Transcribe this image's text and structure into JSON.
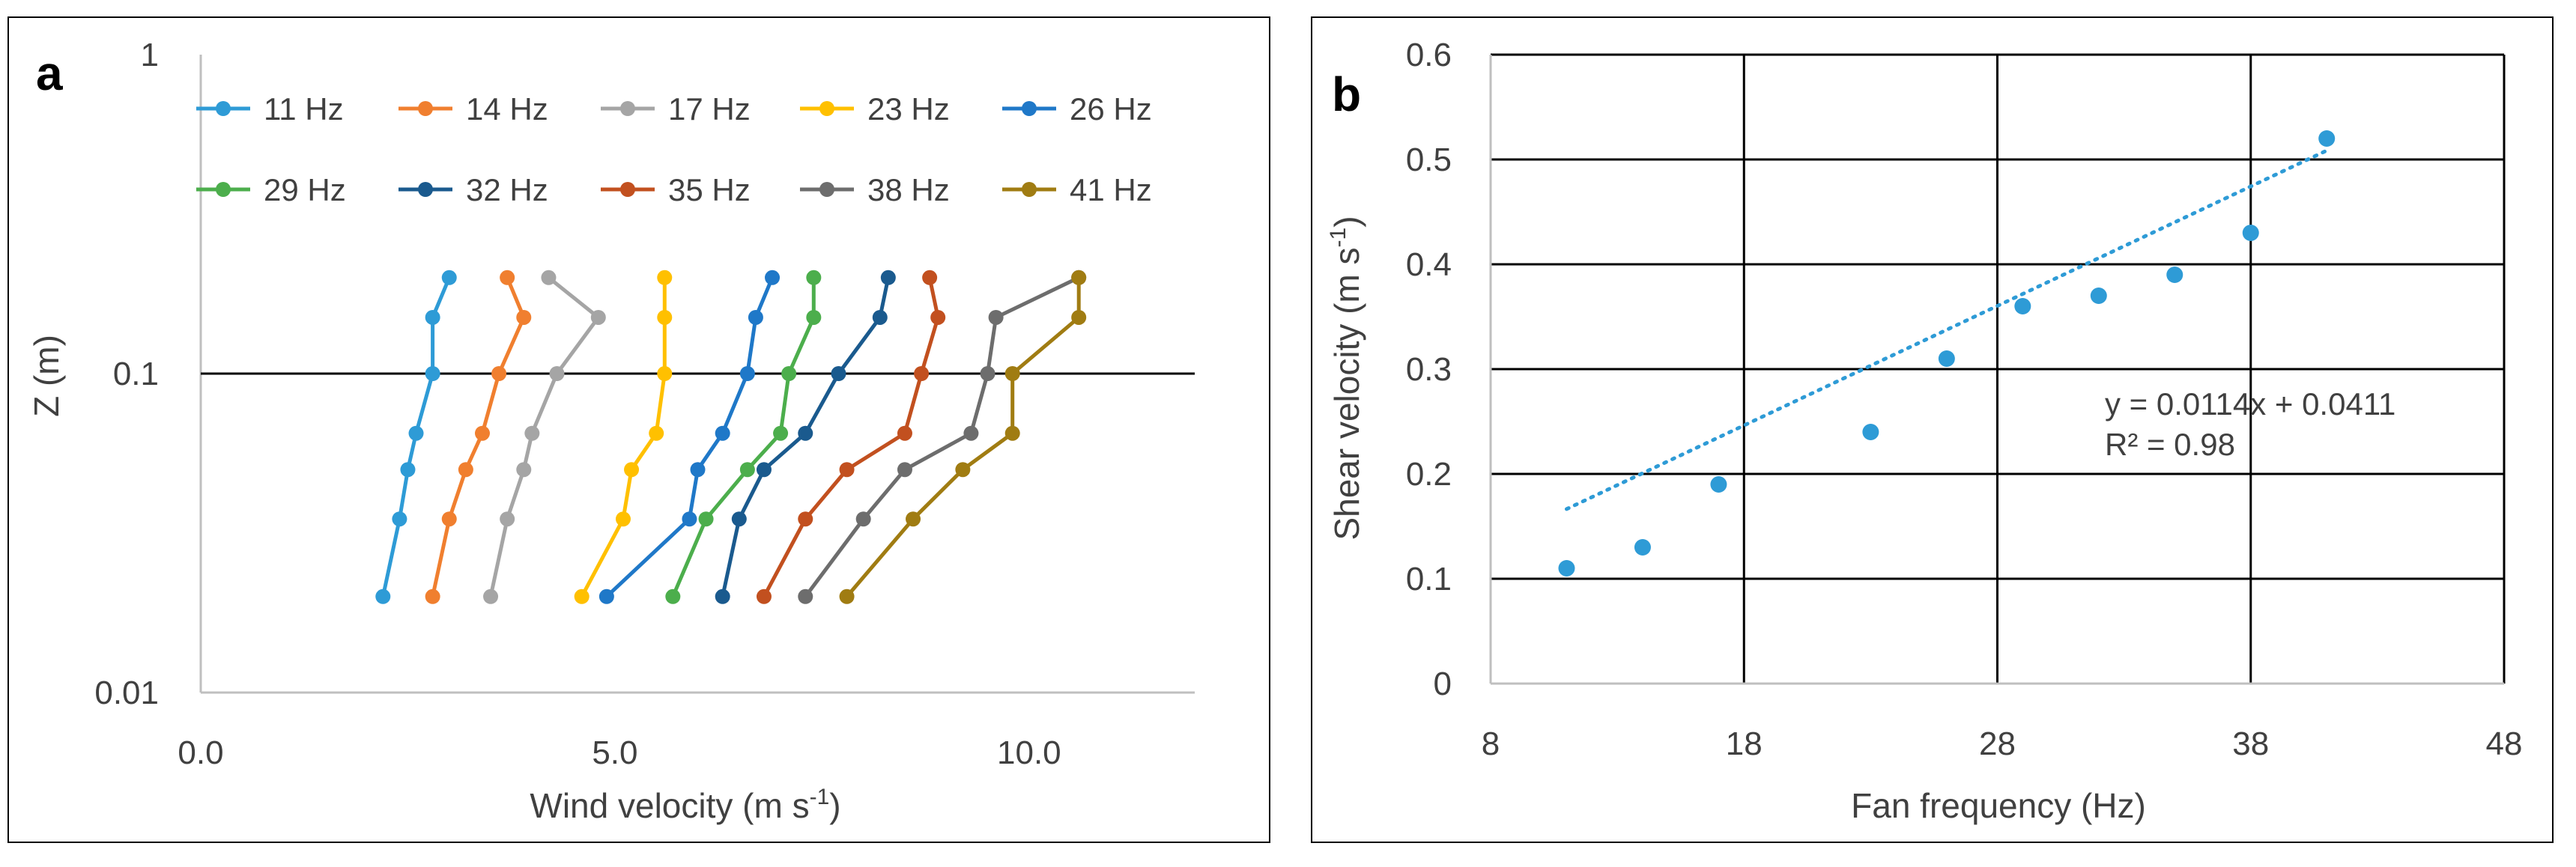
{
  "chart_data": [
    {
      "id": "a",
      "type": "line",
      "panel_label": "a",
      "xlabel": "Wind velocity (m s",
      "xlabel_sup": "-1",
      "xlabel_end": ")",
      "ylabel": "Z (m)",
      "xlim": [
        0,
        12
      ],
      "ylim": [
        0.01,
        1
      ],
      "yscale": "log",
      "xticks": [
        0,
        5,
        10
      ],
      "xtick_labels": [
        "0.0",
        "5.0",
        "10.0"
      ],
      "yticks": [
        0.01,
        0.1,
        1
      ],
      "ytick_labels": [
        "0.01",
        "0.1",
        "1"
      ],
      "gridline_y": 0.1,
      "z": [
        0.02,
        0.035,
        0.05,
        0.065,
        0.1,
        0.15,
        0.2
      ],
      "series": [
        {
          "name": "11 Hz",
          "color": "#2e9bd6",
          "x": [
            2.2,
            2.4,
            2.5,
            2.6,
            2.8,
            2.8,
            3.0
          ]
        },
        {
          "name": "14 Hz",
          "color": "#f07f2f",
          "x": [
            2.8,
            3.0,
            3.2,
            3.4,
            3.6,
            3.9,
            3.7
          ]
        },
        {
          "name": "17 Hz",
          "color": "#a5a5a5",
          "x": [
            3.5,
            3.7,
            3.9,
            4.0,
            4.3,
            4.8,
            4.2
          ]
        },
        {
          "name": "23 Hz",
          "color": "#ffc000",
          "x": [
            4.6,
            5.1,
            5.2,
            5.5,
            5.6,
            5.6,
            5.6
          ]
        },
        {
          "name": "26 Hz",
          "color": "#1f78c8",
          "x": [
            4.9,
            5.9,
            6.0,
            6.3,
            6.6,
            6.7,
            6.9
          ]
        },
        {
          "name": "29 Hz",
          "color": "#4cae4c",
          "x": [
            5.7,
            6.1,
            6.6,
            7.0,
            7.1,
            7.4,
            7.4
          ]
        },
        {
          "name": "32 Hz",
          "color": "#1a5a8e",
          "x": [
            6.3,
            6.5,
            6.8,
            7.3,
            7.7,
            8.2,
            8.3
          ]
        },
        {
          "name": "35 Hz",
          "color": "#c2501f",
          "x": [
            6.8,
            7.3,
            7.8,
            8.5,
            8.7,
            8.9,
            8.8
          ]
        },
        {
          "name": "38 Hz",
          "color": "#6d6d6d",
          "x": [
            7.3,
            8.0,
            8.5,
            9.3,
            9.5,
            9.6,
            10.6
          ]
        },
        {
          "name": "41 Hz",
          "color": "#a07c12",
          "x": [
            7.8,
            8.6,
            9.2,
            9.8,
            9.8,
            10.6,
            10.6
          ]
        }
      ]
    },
    {
      "id": "b",
      "type": "scatter",
      "panel_label": "b",
      "xlabel": "Fan frequency (Hz)",
      "ylabel": "Shear velocity (m s",
      "ylabel_sup": "-1",
      "ylabel_end": ")",
      "xlim": [
        8,
        48
      ],
      "ylim": [
        0,
        0.6
      ],
      "xticks": [
        8,
        18,
        28,
        38,
        48
      ],
      "xtick_labels": [
        "8",
        "18",
        "28",
        "38",
        "48"
      ],
      "yticks": [
        0,
        0.1,
        0.2,
        0.3,
        0.4,
        0.5,
        0.6
      ],
      "ytick_labels": [
        "0",
        "0.1",
        "0.2",
        "0.3",
        "0.4",
        "0.5",
        "0.6"
      ],
      "color": "#2e9bd6",
      "x": [
        11,
        14,
        17,
        23,
        26,
        29,
        32,
        35,
        38,
        41
      ],
      "y": [
        0.11,
        0.13,
        0.19,
        0.24,
        0.31,
        0.36,
        0.37,
        0.39,
        0.43,
        0.52
      ],
      "trendline": {
        "slope": 0.0114,
        "intercept": 0.0411,
        "x_range": [
          11,
          41
        ]
      },
      "equation": "y = 0.0114x + 0.0411",
      "r2": "R² = 0.98"
    }
  ]
}
